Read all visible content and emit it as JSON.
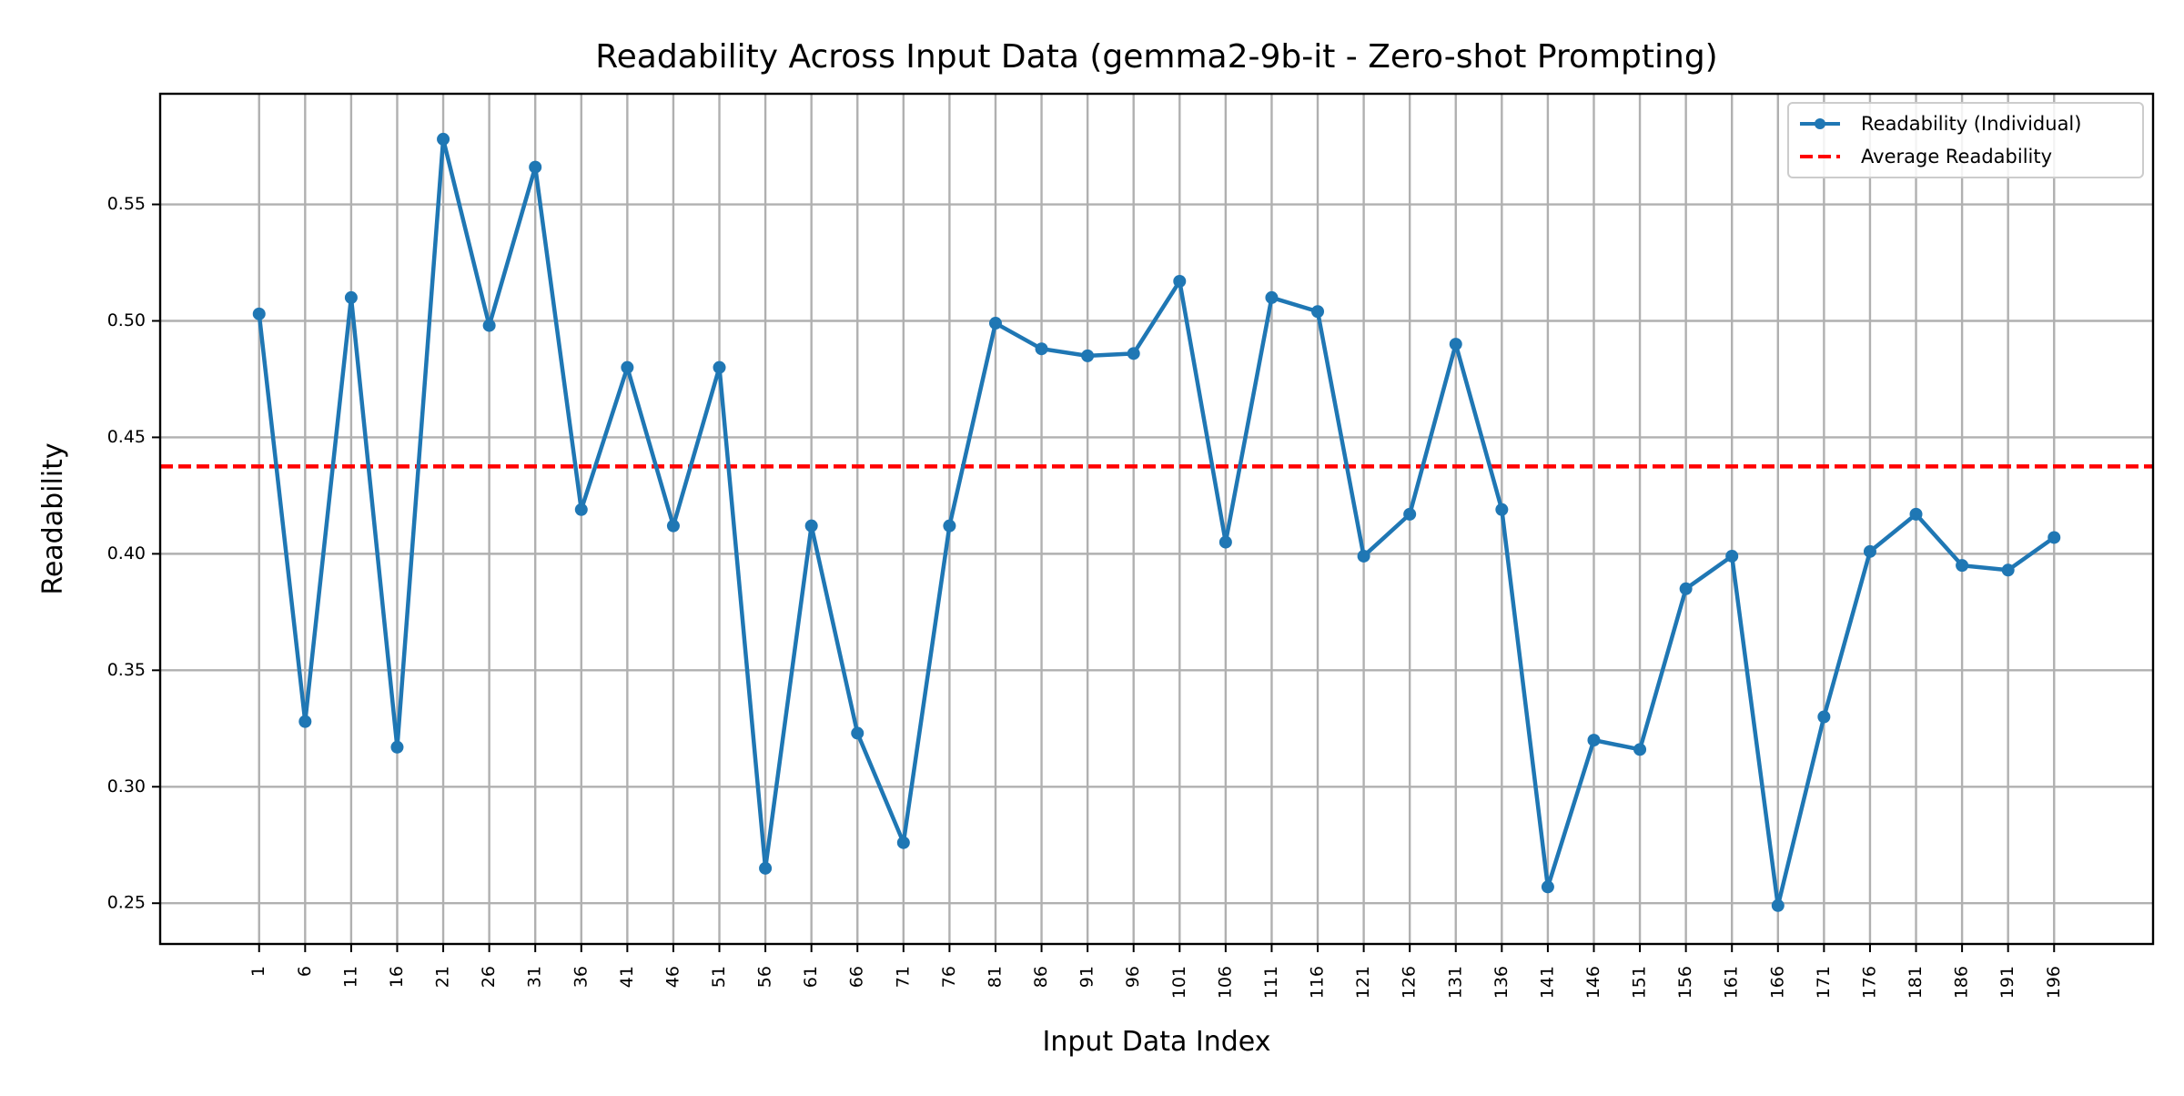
{
  "chart_data": {
    "type": "line",
    "title": "Readability Across Input Data (gemma2-9b-it - Zero-shot Prompting)",
    "xlabel": "Input Data Index",
    "ylabel": "Readability",
    "x": [
      1,
      6,
      11,
      16,
      21,
      26,
      31,
      36,
      41,
      46,
      51,
      56,
      61,
      66,
      71,
      76,
      81,
      86,
      91,
      96,
      101,
      106,
      111,
      116,
      121,
      126,
      131,
      136,
      141,
      146,
      151,
      156,
      161,
      166,
      171,
      176,
      181,
      186,
      191,
      196
    ],
    "x_tick_labels": [
      "1",
      "6",
      "11",
      "16",
      "21",
      "26",
      "31",
      "36",
      "41",
      "46",
      "51",
      "56",
      "61",
      "66",
      "71",
      "76",
      "81",
      "86",
      "91",
      "96",
      "101",
      "106",
      "111",
      "116",
      "121",
      "126",
      "131",
      "136",
      "141",
      "146",
      "151",
      "156",
      "161",
      "166",
      "171",
      "176",
      "181",
      "186",
      "191",
      "196"
    ],
    "xlim": [
      -9.75,
      206.75
    ],
    "ylim": [
      0.2325,
      0.5975
    ],
    "y_ticks": [
      0.25,
      0.3,
      0.35,
      0.4,
      0.45,
      0.5,
      0.55
    ],
    "y_tick_labels": [
      "0.25",
      "0.30",
      "0.35",
      "0.40",
      "0.45",
      "0.50",
      "0.55"
    ],
    "grid": true,
    "legend_position": "top-right",
    "series": [
      {
        "name": "Readability (Individual)",
        "style": "line-with-markers",
        "color": "#1f77b4",
        "values": [
          0.503,
          0.328,
          0.51,
          0.317,
          0.578,
          0.498,
          0.566,
          0.419,
          0.48,
          0.412,
          0.48,
          0.265,
          0.412,
          0.323,
          0.276,
          0.412,
          0.499,
          0.488,
          0.485,
          0.486,
          0.517,
          0.405,
          0.51,
          0.504,
          0.399,
          0.417,
          0.49,
          0.419,
          0.257,
          0.32,
          0.316,
          0.385,
          0.399,
          0.249,
          0.33,
          0.401,
          0.417,
          0.395,
          0.393,
          0.407
        ]
      }
    ],
    "reference_lines": [
      {
        "name": "Average Readability",
        "y": 0.4375,
        "color": "#ff0000",
        "style": "dashed"
      }
    ]
  }
}
